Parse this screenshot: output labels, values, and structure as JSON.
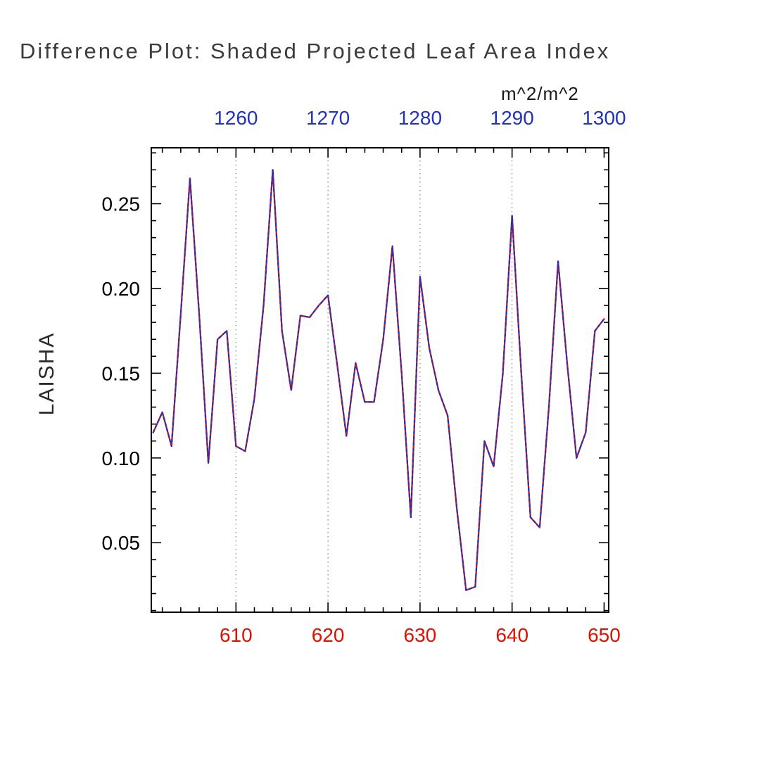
{
  "chart_data": {
    "type": "line",
    "title": "Difference Plot: Shaded Projected Leaf Area Index",
    "ylabel": "LAISHA",
    "xlabel": "",
    "top_axis_unit": "m^2/m^2",
    "xlim": [
      600.8,
      650.5
    ],
    "ylim": [
      0.009,
      0.283
    ],
    "grid": "vertical-dashed",
    "gridlines_x": [
      610,
      620,
      630,
      640
    ],
    "x_axis_bottom": {
      "ticks": [
        610,
        620,
        630,
        640,
        650
      ],
      "minor_step": 2,
      "color": "#dd1100"
    },
    "x_axis_top": {
      "ticks": [
        1260,
        1270,
        1280,
        1290,
        1300
      ],
      "offset": 650,
      "minor_step": 2,
      "color": "#2233bb"
    },
    "y_axis": {
      "ticks": [
        0.05,
        0.1,
        0.15,
        0.2,
        0.25
      ],
      "minor_step": 0.01,
      "color": "#000000"
    },
    "x_start": 601,
    "x_step": 1,
    "values": [
      0.115,
      0.127,
      0.107,
      0.185,
      0.265,
      0.185,
      0.097,
      0.17,
      0.175,
      0.107,
      0.104,
      0.135,
      0.19,
      0.27,
      0.175,
      0.14,
      0.184,
      0.183,
      0.19,
      0.196,
      0.155,
      0.113,
      0.156,
      0.133,
      0.133,
      0.17,
      0.225,
      0.15,
      0.065,
      0.207,
      0.165,
      0.14,
      0.125,
      0.07,
      0.022,
      0.024,
      0.11,
      0.095,
      0.15,
      0.243,
      0.15,
      0.065,
      0.059,
      0.13,
      0.216,
      0.155,
      0.1,
      0.115,
      0.175,
      0.182
    ],
    "series": [
      {
        "name": "series-red",
        "color": "#dd1100",
        "dash": null
      },
      {
        "name": "series-blue",
        "color": "#2233bb",
        "dash": "3.5 4.5"
      }
    ],
    "legend": "none",
    "frame_color": "#000000",
    "grid_color": "#666666"
  }
}
